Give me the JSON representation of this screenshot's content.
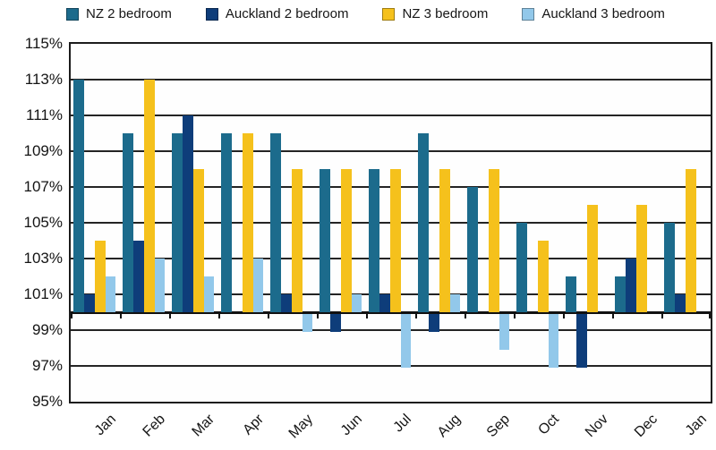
{
  "chart_data": {
    "type": "bar",
    "categories": [
      "Jan",
      "Feb",
      "Mar",
      "Apr",
      "May",
      "Jun",
      "Jul",
      "Aug",
      "Sep",
      "Oct",
      "Nov",
      "Dec",
      "Jan"
    ],
    "series": [
      {
        "name": "NZ 2 bedroom",
        "color": "#1C6B8C",
        "values": [
          113,
          110,
          110,
          110,
          110,
          108,
          108,
          110,
          107,
          105,
          102,
          102,
          105
        ]
      },
      {
        "name": "Auckland 2 bedroom",
        "color": "#0E3D7A",
        "values": [
          101,
          104,
          111,
          100,
          101,
          99,
          101,
          99,
          100,
          100,
          97,
          103,
          101
        ]
      },
      {
        "name": "NZ 3 bedroom",
        "color": "#F5C11C",
        "values": [
          104,
          113,
          108,
          110,
          108,
          108,
          108,
          108,
          108,
          104,
          106,
          106,
          108
        ]
      },
      {
        "name": "Auckland 3 bedroom",
        "color": "#92C8EA",
        "values": [
          102,
          103,
          102,
          103,
          99,
          101,
          97,
          101,
          98,
          97,
          100,
          100,
          100
        ]
      }
    ],
    "ylim": [
      95,
      115
    ],
    "ytick_step": 2,
    "baseline": 100,
    "ytick_labels": [
      "115%",
      "113%",
      "111%",
      "109%",
      "107%",
      "105%",
      "103%",
      "101%",
      "99%",
      "97%",
      "95%"
    ],
    "xlabel": "",
    "ylabel": "",
    "title": "",
    "grid": true,
    "legend_position": "top",
    "axis_text_color": "#141414",
    "gridline_color": "#242424"
  }
}
